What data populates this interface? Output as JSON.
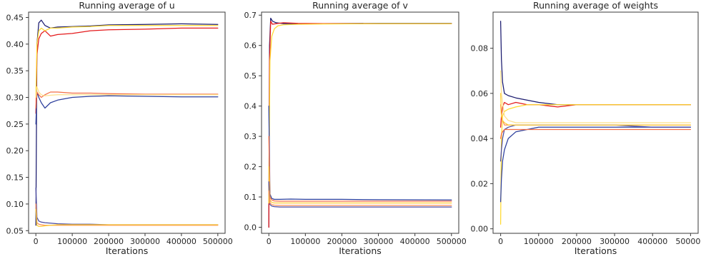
{
  "chart_data": [
    {
      "type": "line",
      "title": "Running average of u",
      "xlabel": "Iterations",
      "ylabel": "",
      "xlim": [
        -20000,
        520000
      ],
      "ylim": [
        0.045,
        0.46
      ],
      "xticks": [
        0,
        100000,
        200000,
        300000,
        400000,
        500000
      ],
      "yticks": [
        0.05,
        0.1,
        0.15,
        0.2,
        0.25,
        0.3,
        0.35,
        0.4,
        0.45
      ],
      "ytick_labels": [
        "0.05",
        "0.10",
        "0.15",
        "0.20",
        "0.25",
        "0.30",
        "0.35",
        "0.40",
        "0.45"
      ],
      "series": [
        {
          "color": "#1a1a6e",
          "x": [
            0,
            3000,
            8000,
            15000,
            25000,
            40000,
            60000,
            100000,
            150000,
            200000,
            300000,
            400000,
            500000
          ],
          "y": [
            0.06,
            0.4,
            0.44,
            0.445,
            0.435,
            0.43,
            0.432,
            0.433,
            0.434,
            0.436,
            0.437,
            0.438,
            0.437
          ]
        },
        {
          "color": "#e41a1c",
          "x": [
            0,
            3000,
            8000,
            15000,
            25000,
            40000,
            60000,
            100000,
            150000,
            200000,
            300000,
            400000,
            500000
          ],
          "y": [
            0.27,
            0.38,
            0.41,
            0.42,
            0.425,
            0.415,
            0.418,
            0.42,
            0.425,
            0.427,
            0.428,
            0.43,
            0.43
          ]
        },
        {
          "color": "#ffd92f",
          "x": [
            0,
            3000,
            8000,
            15000,
            25000,
            40000,
            60000,
            100000,
            150000,
            200000,
            300000,
            400000,
            500000
          ],
          "y": [
            0.3,
            0.4,
            0.425,
            0.43,
            0.425,
            0.43,
            0.43,
            0.432,
            0.433,
            0.435,
            0.435,
            0.435,
            0.435
          ]
        },
        {
          "color": "#2c3e9c",
          "x": [
            0,
            3000,
            8000,
            15000,
            25000,
            40000,
            60000,
            100000,
            150000,
            200000,
            300000,
            400000,
            500000
          ],
          "y": [
            0.25,
            0.31,
            0.3,
            0.29,
            0.28,
            0.29,
            0.295,
            0.3,
            0.302,
            0.303,
            0.302,
            0.301,
            0.301
          ]
        },
        {
          "color": "#f46d43",
          "x": [
            0,
            3000,
            8000,
            15000,
            25000,
            40000,
            60000,
            100000,
            150000,
            200000,
            300000,
            400000,
            500000
          ],
          "y": [
            0.28,
            0.31,
            0.305,
            0.3,
            0.305,
            0.31,
            0.31,
            0.308,
            0.308,
            0.307,
            0.306,
            0.306,
            0.306
          ]
        },
        {
          "color": "#fee08b",
          "x": [
            0,
            3000,
            8000,
            15000,
            25000,
            40000,
            60000,
            100000,
            150000,
            200000,
            300000,
            400000,
            500000
          ],
          "y": [
            0.3,
            0.32,
            0.31,
            0.305,
            0.303,
            0.304,
            0.305,
            0.305,
            0.305,
            0.305,
            0.305,
            0.305,
            0.305
          ]
        },
        {
          "color": "#4a4aa0",
          "x": [
            0,
            3000,
            8000,
            15000,
            25000,
            40000,
            60000,
            100000,
            150000,
            200000,
            300000,
            400000,
            500000
          ],
          "y": [
            0.13,
            0.075,
            0.068,
            0.066,
            0.065,
            0.064,
            0.063,
            0.062,
            0.062,
            0.061,
            0.061,
            0.061,
            0.061
          ]
        },
        {
          "color": "#fc8d59",
          "x": [
            0,
            3000,
            8000,
            15000,
            25000,
            40000,
            60000,
            100000,
            150000,
            200000,
            300000,
            400000,
            500000
          ],
          "y": [
            0.1,
            0.065,
            0.062,
            0.061,
            0.06,
            0.06,
            0.06,
            0.06,
            0.06,
            0.06,
            0.06,
            0.06,
            0.06
          ]
        },
        {
          "color": "#ffcc33",
          "x": [
            0,
            3000,
            8000,
            15000,
            25000,
            40000,
            60000,
            100000,
            150000,
            200000,
            300000,
            400000,
            500000
          ],
          "y": [
            0.09,
            0.06,
            0.058,
            0.058,
            0.059,
            0.06,
            0.061,
            0.061,
            0.061,
            0.061,
            0.061,
            0.061,
            0.061
          ]
        }
      ]
    },
    {
      "type": "line",
      "title": "Running average of v",
      "xlabel": "Iterations",
      "ylabel": "",
      "xlim": [
        -20000,
        520000
      ],
      "ylim": [
        -0.02,
        0.71
      ],
      "xticks": [
        0,
        100000,
        200000,
        300000,
        400000,
        500000
      ],
      "yticks": [
        0.0,
        0.1,
        0.2,
        0.3,
        0.4,
        0.5,
        0.6,
        0.7
      ],
      "ytick_labels": [
        "0.0",
        "0.1",
        "0.2",
        "0.3",
        "0.4",
        "0.5",
        "0.6",
        "0.7"
      ],
      "series": [
        {
          "color": "#1a1a6e",
          "x": [
            0,
            2000,
            5000,
            10000,
            20000,
            40000,
            80000,
            150000,
            300000,
            500000
          ],
          "y": [
            0.0,
            0.6,
            0.69,
            0.68,
            0.675,
            0.672,
            0.672,
            0.672,
            0.673,
            0.673
          ]
        },
        {
          "color": "#e41a1c",
          "x": [
            0,
            2000,
            5000,
            10000,
            20000,
            40000,
            80000,
            150000,
            300000,
            500000
          ],
          "y": [
            0.0,
            0.55,
            0.68,
            0.67,
            0.672,
            0.675,
            0.673,
            0.672,
            0.672,
            0.672
          ]
        },
        {
          "color": "#ffd92f",
          "x": [
            0,
            3000,
            8000,
            15000,
            25000,
            40000,
            80000,
            150000,
            300000,
            500000
          ],
          "y": [
            0.08,
            0.55,
            0.63,
            0.655,
            0.665,
            0.668,
            0.67,
            0.671,
            0.672,
            0.672
          ]
        },
        {
          "color": "#2c3e9c",
          "x": [
            0,
            3000,
            8000,
            15000,
            30000,
            60000,
            100000,
            200000,
            300000,
            500000
          ],
          "y": [
            0.4,
            0.11,
            0.095,
            0.092,
            0.092,
            0.093,
            0.092,
            0.092,
            0.091,
            0.09
          ]
        },
        {
          "color": "#f46d43",
          "x": [
            0,
            3000,
            8000,
            15000,
            30000,
            60000,
            100000,
            200000,
            300000,
            500000
          ],
          "y": [
            0.3,
            0.1,
            0.09,
            0.087,
            0.086,
            0.086,
            0.086,
            0.086,
            0.086,
            0.086
          ]
        },
        {
          "color": "#ffcc33",
          "x": [
            0,
            3000,
            8000,
            15000,
            30000,
            60000,
            100000,
            200000,
            300000,
            500000
          ],
          "y": [
            0.2,
            0.09,
            0.082,
            0.08,
            0.08,
            0.08,
            0.08,
            0.08,
            0.08,
            0.08
          ]
        },
        {
          "color": "#4a4aa0",
          "x": [
            0,
            3000,
            8000,
            15000,
            30000,
            60000,
            100000,
            200000,
            300000,
            500000
          ],
          "y": [
            0.15,
            0.075,
            0.07,
            0.068,
            0.067,
            0.067,
            0.067,
            0.067,
            0.067,
            0.067
          ]
        },
        {
          "color": "#fc8d59",
          "x": [
            0,
            3000,
            8000,
            15000,
            30000,
            60000,
            100000,
            200000,
            300000,
            500000
          ],
          "y": [
            0.12,
            0.08,
            0.075,
            0.073,
            0.072,
            0.072,
            0.072,
            0.072,
            0.072,
            0.072
          ]
        }
      ]
    },
    {
      "type": "line",
      "title": "Running average of weights",
      "xlabel": "Iterations",
      "ylabel": "",
      "xlim": [
        -20000,
        520000
      ],
      "ylim": [
        -0.002,
        0.096
      ],
      "xticks": [
        0,
        100000,
        200000,
        300000,
        400000,
        500000
      ],
      "yticks": [
        0.0,
        0.02,
        0.04,
        0.06,
        0.08
      ],
      "ytick_labels": [
        "0.00",
        "0.02",
        "0.04",
        "0.06",
        "0.08"
      ],
      "series": [
        {
          "color": "#1a1a6e",
          "x": [
            0,
            2000,
            5000,
            10000,
            20000,
            40000,
            70000,
            100000,
            150000,
            200000,
            300000,
            400000,
            500000
          ],
          "y": [
            0.092,
            0.075,
            0.065,
            0.06,
            0.059,
            0.058,
            0.057,
            0.056,
            0.055,
            0.055,
            0.055,
            0.055,
            0.055
          ]
        },
        {
          "color": "#e41a1c",
          "x": [
            0,
            2000,
            5000,
            10000,
            20000,
            40000,
            70000,
            100000,
            150000,
            200000,
            300000,
            400000,
            500000
          ],
          "y": [
            0.045,
            0.05,
            0.054,
            0.056,
            0.055,
            0.056,
            0.055,
            0.055,
            0.054,
            0.055,
            0.055,
            0.055,
            0.055
          ]
        },
        {
          "color": "#ffd92f",
          "x": [
            0,
            2000,
            5000,
            10000,
            20000,
            40000,
            70000,
            100000,
            150000,
            200000,
            300000,
            400000,
            500000
          ],
          "y": [
            0.002,
            0.04,
            0.05,
            0.052,
            0.053,
            0.054,
            0.055,
            0.055,
            0.055,
            0.055,
            0.055,
            0.055,
            0.055
          ]
        },
        {
          "color": "#fee08b",
          "x": [
            0,
            2000,
            5000,
            10000,
            20000,
            40000,
            70000,
            100000,
            150000,
            200000,
            300000,
            400000,
            500000
          ],
          "y": [
            0.07,
            0.06,
            0.056,
            0.05,
            0.048,
            0.047,
            0.047,
            0.047,
            0.047,
            0.047,
            0.047,
            0.047,
            0.047
          ]
        },
        {
          "color": "#fc8d59",
          "x": [
            0,
            2000,
            5000,
            10000,
            20000,
            40000,
            70000,
            100000,
            150000,
            200000,
            300000,
            400000,
            500000
          ],
          "y": [
            0.055,
            0.05,
            0.048,
            0.046,
            0.046,
            0.046,
            0.046,
            0.046,
            0.046,
            0.046,
            0.046,
            0.046,
            0.046
          ]
        },
        {
          "color": "#2c3e9c",
          "x": [
            0,
            2000,
            5000,
            10000,
            20000,
            40000,
            70000,
            100000,
            150000,
            200000,
            300000,
            400000,
            500000
          ],
          "y": [
            0.012,
            0.022,
            0.03,
            0.035,
            0.04,
            0.043,
            0.044,
            0.045,
            0.045,
            0.045,
            0.045,
            0.045,
            0.045
          ]
        },
        {
          "color": "#4a4aa0",
          "x": [
            0,
            2000,
            5000,
            10000,
            20000,
            40000,
            70000,
            100000,
            150000,
            200000,
            300000,
            400000,
            500000
          ],
          "y": [
            0.03,
            0.035,
            0.04,
            0.044,
            0.045,
            0.046,
            0.046,
            0.046,
            0.046,
            0.046,
            0.046,
            0.045,
            0.045
          ]
        },
        {
          "color": "#f46d43",
          "x": [
            0,
            2000,
            5000,
            10000,
            20000,
            40000,
            70000,
            100000,
            150000,
            200000,
            300000,
            400000,
            500000
          ],
          "y": [
            0.04,
            0.042,
            0.043,
            0.044,
            0.044,
            0.044,
            0.044,
            0.044,
            0.044,
            0.044,
            0.044,
            0.044,
            0.044
          ]
        },
        {
          "color": "#ffcc33",
          "x": [
            0,
            2000,
            5000,
            10000,
            20000,
            40000,
            70000,
            100000,
            150000,
            200000,
            300000,
            400000,
            500000
          ],
          "y": [
            0.06,
            0.05,
            0.048,
            0.047,
            0.046,
            0.046,
            0.046,
            0.046,
            0.046,
            0.046,
            0.046,
            0.046,
            0.046
          ]
        }
      ]
    }
  ]
}
